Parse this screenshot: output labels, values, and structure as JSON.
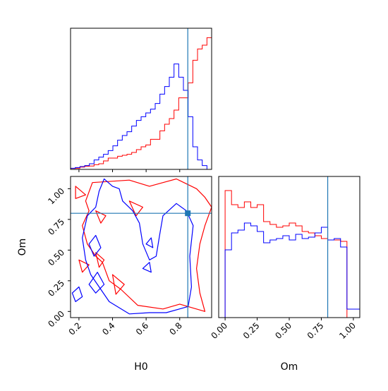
{
  "chart_data": [
    {
      "type": "histogram",
      "panel": "H0-marginal",
      "xlim": [
        0.15,
        0.99
      ],
      "truth": 0.848,
      "bin_edges": [
        0.15,
        0.178,
        0.206,
        0.234,
        0.262,
        0.29,
        0.318,
        0.346,
        0.374,
        0.402,
        0.43,
        0.458,
        0.486,
        0.514,
        0.542,
        0.57,
        0.598,
        0.626,
        0.654,
        0.682,
        0.71,
        0.738,
        0.766,
        0.794,
        0.822,
        0.85,
        0.878,
        0.906,
        0.934,
        0.962,
        0.99
      ],
      "series": [
        {
          "name": "",
          "color": "#ff0000",
          "values": [
            0.5,
            0.6,
            1.2,
            1.7,
            1.8,
            2.5,
            3.0,
            4.5,
            6.0,
            6.0,
            7.0,
            7.5,
            8.0,
            9.0,
            10.5,
            12.0,
            13.0,
            16.0,
            16.0,
            20.5,
            24.0,
            27.0,
            31.5,
            38.0,
            38.0,
            46.0,
            58.0,
            64.0,
            66.0,
            70.0
          ]
        },
        {
          "name": "",
          "color": "#0000ff",
          "values": [
            0.6,
            1.0,
            1.5,
            2.0,
            3.0,
            5.0,
            6.5,
            8.0,
            10.0,
            12.5,
            15.5,
            18.0,
            20.0,
            23.0,
            26.0,
            28.0,
            30.0,
            32.0,
            35.0,
            40.0,
            44.0,
            49.0,
            56.0,
            49.0,
            42.0,
            28.0,
            12.0,
            5.0,
            2.0,
            0.0
          ]
        }
      ],
      "ylim": [
        0,
        75
      ]
    },
    {
      "type": "histogram",
      "panel": "Om-marginal",
      "xlim": [
        -0.05,
        1.05
      ],
      "truth": 0.8,
      "bin_edges": [
        -0.05,
        0.0,
        0.05,
        0.1,
        0.15,
        0.2,
        0.25,
        0.3,
        0.35,
        0.4,
        0.45,
        0.5,
        0.55,
        0.6,
        0.65,
        0.7,
        0.75,
        0.8,
        0.85,
        0.9,
        0.95,
        1.0,
        1.05
      ],
      "series": [
        {
          "name": "",
          "color": "#ff0000",
          "values": [
            0,
            90,
            80,
            78,
            82,
            78,
            80,
            68,
            66,
            64,
            65,
            67,
            65,
            61,
            60,
            58,
            56,
            55,
            55,
            54,
            0,
            0
          ]
        },
        {
          "name": "",
          "color": "#0000ff",
          "values": [
            0,
            48,
            60,
            62,
            67,
            65,
            61,
            53,
            55,
            56,
            58,
            55,
            59,
            56,
            57,
            60,
            64,
            55,
            56,
            50,
            6,
            6
          ]
        }
      ],
      "ylim": [
        0,
        100
      ]
    },
    {
      "type": "contour",
      "panel": "H0-Om-joint",
      "xlabel": "H0",
      "ylabel": "Om",
      "xlim": [
        0.15,
        0.99
      ],
      "ylim": [
        -0.05,
        1.1
      ],
      "truth": {
        "x": 0.848,
        "y": 0.8
      },
      "series": [
        {
          "name": "",
          "color": "#ff0000",
          "contours": [
            [
              [
                0.28,
                1.05
              ],
              [
                0.5,
                1.07
              ],
              [
                0.62,
                1.02
              ],
              [
                0.7,
                1.05
              ],
              [
                0.78,
                1.08
              ],
              [
                0.9,
                1.0
              ],
              [
                0.95,
                0.93
              ],
              [
                0.99,
                0.85
              ],
              [
                0.95,
                0.7
              ],
              [
                0.92,
                0.55
              ],
              [
                0.9,
                0.35
              ],
              [
                0.92,
                0.15
              ],
              [
                0.95,
                0.0
              ],
              [
                0.8,
                0.06
              ],
              [
                0.7,
                0.02
              ],
              [
                0.55,
                0.05
              ],
              [
                0.45,
                0.18
              ],
              [
                0.38,
                0.25
              ],
              [
                0.34,
                0.4
              ],
              [
                0.3,
                0.45
              ],
              [
                0.25,
                0.55
              ],
              [
                0.22,
                0.7
              ],
              [
                0.26,
                0.82
              ],
              [
                0.24,
                0.9
              ],
              [
                0.28,
                1.05
              ]
            ],
            [
              [
                0.18,
                1.02
              ],
              [
                0.24,
                0.95
              ],
              [
                0.18,
                0.92
              ],
              [
                0.18,
                1.02
              ]
            ],
            [
              [
                0.3,
                0.82
              ],
              [
                0.36,
                0.78
              ],
              [
                0.33,
                0.72
              ],
              [
                0.3,
                0.82
              ]
            ],
            [
              [
                0.3,
                0.48
              ],
              [
                0.35,
                0.42
              ],
              [
                0.32,
                0.36
              ],
              [
                0.3,
                0.48
              ]
            ],
            [
              [
                0.2,
                0.42
              ],
              [
                0.26,
                0.38
              ],
              [
                0.22,
                0.32
              ],
              [
                0.2,
                0.42
              ]
            ],
            [
              [
                0.4,
                0.3
              ],
              [
                0.47,
                0.22
              ],
              [
                0.42,
                0.14
              ],
              [
                0.4,
                0.3
              ]
            ],
            [
              [
                0.5,
                0.9
              ],
              [
                0.58,
                0.85
              ],
              [
                0.54,
                0.78
              ],
              [
                0.5,
                0.9
              ]
            ]
          ]
        },
        {
          "name": "",
          "color": "#0000ff",
          "contours": [
            [
              [
                0.38,
                0.08
              ],
              [
                0.5,
                -0.02
              ],
              [
                0.62,
                -0.01
              ],
              [
                0.72,
                -0.01
              ],
              [
                0.85,
                0.04
              ],
              [
                0.87,
                0.2
              ],
              [
                0.86,
                0.45
              ],
              [
                0.88,
                0.7
              ],
              [
                0.84,
                0.82
              ],
              [
                0.78,
                0.88
              ],
              [
                0.7,
                0.78
              ],
              [
                0.68,
                0.62
              ],
              [
                0.66,
                0.45
              ],
              [
                0.62,
                0.42
              ],
              [
                0.58,
                0.55
              ],
              [
                0.56,
                0.72
              ],
              [
                0.52,
                0.82
              ],
              [
                0.46,
                0.9
              ],
              [
                0.44,
                1.0
              ],
              [
                0.4,
                1.02
              ],
              [
                0.35,
                1.08
              ],
              [
                0.32,
                0.98
              ],
              [
                0.3,
                0.85
              ],
              [
                0.25,
                0.78
              ],
              [
                0.22,
                0.6
              ],
              [
                0.24,
                0.42
              ],
              [
                0.27,
                0.3
              ],
              [
                0.33,
                0.18
              ],
              [
                0.38,
                0.08
              ]
            ],
            [
              [
                0.16,
                0.15
              ],
              [
                0.2,
                0.2
              ],
              [
                0.22,
                0.12
              ],
              [
                0.18,
                0.08
              ],
              [
                0.16,
                0.15
              ]
            ],
            [
              [
                0.26,
                0.22
              ],
              [
                0.31,
                0.32
              ],
              [
                0.35,
                0.22
              ],
              [
                0.3,
                0.15
              ],
              [
                0.26,
                0.22
              ]
            ],
            [
              [
                0.26,
                0.55
              ],
              [
                0.3,
                0.62
              ],
              [
                0.33,
                0.52
              ],
              [
                0.29,
                0.45
              ],
              [
                0.26,
                0.55
              ]
            ],
            [
              [
                0.6,
                0.55
              ],
              [
                0.63,
                0.6
              ],
              [
                0.64,
                0.52
              ],
              [
                0.6,
                0.55
              ]
            ],
            [
              [
                0.58,
                0.35
              ],
              [
                0.62,
                0.4
              ],
              [
                0.63,
                0.32
              ],
              [
                0.58,
                0.35
              ]
            ]
          ]
        }
      ]
    }
  ],
  "axes": {
    "h0_ticks": [
      "0.2",
      "0.4",
      "0.6",
      "0.8"
    ],
    "om_ticks": [
      "0.00",
      "0.25",
      "0.50",
      "0.75",
      "1.00"
    ],
    "xlabel_h0": "H0",
    "xlabel_om": "Om",
    "ylabel_om": "Om"
  }
}
